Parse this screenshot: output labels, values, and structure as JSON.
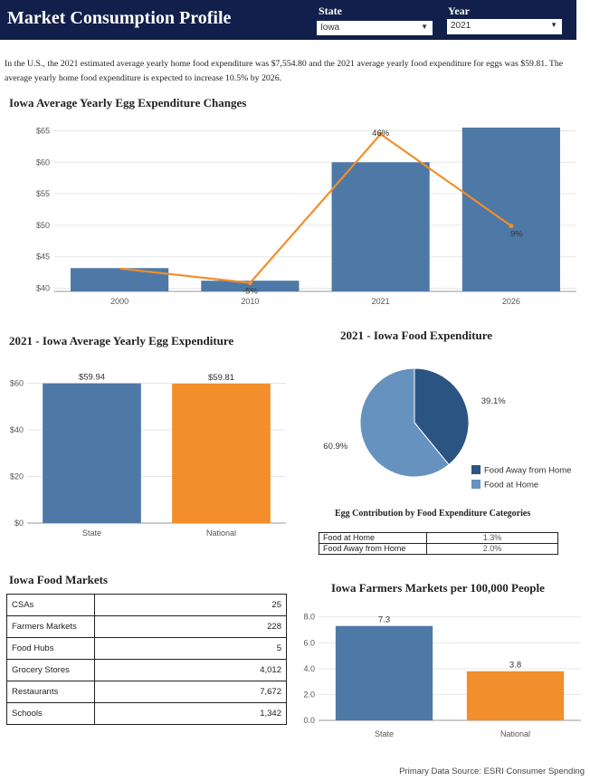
{
  "header": {
    "title": "Market Consumption Profile",
    "state_label": "State",
    "state_value": "Iowa",
    "year_label": "Year",
    "year_value": "2021"
  },
  "intro": "In the U.S., the 2021 estimated average yearly home food expenditure was $7,554.80 and the 2021 average yearly food expenditure for eggs was $59.81. The average yearly home food expenditure is expected to increase 10.5% by 2026.",
  "colors": {
    "blue": "#4e79a7",
    "orange": "#f28e2b",
    "dark_blue": "#2c5482",
    "light_blue": "#6592bf",
    "header": "#111f4a"
  },
  "chart_data": [
    {
      "id": "egg_changes",
      "type": "bar",
      "title": "Iowa Average Yearly Egg Expenditure Changes",
      "categories": [
        "2000",
        "2010",
        "2021",
        "2026"
      ],
      "values": [
        43.2,
        41.2,
        60.0,
        65.5
      ],
      "yticks": [
        "$40",
        "$45",
        "$50",
        "$55",
        "$60",
        "$65"
      ],
      "ylim": [
        39.5,
        65.5
      ],
      "line": {
        "name": "% change",
        "values": [
          3.5,
          1.3,
          24,
          10
        ],
        "labels": [
          "",
          "-5%",
          "46%",
          "9%"
        ],
        "ylim": [
          0,
          25
        ]
      }
    },
    {
      "id": "state_vs_national",
      "type": "bar",
      "title": "2021 - Iowa Average Yearly Egg Expenditure",
      "categories": [
        "State",
        "National"
      ],
      "values": [
        59.94,
        59.81
      ],
      "labels": [
        "$59.94",
        "$59.81"
      ],
      "yticks": [
        "$0",
        "$20",
        "$40",
        "$60"
      ],
      "ylim": [
        0,
        66
      ]
    },
    {
      "id": "food_pie",
      "type": "pie",
      "title": "2021 - Iowa Food Expenditure",
      "slices": [
        {
          "name": "Food Away from Home",
          "value": 39.1,
          "label": "39.1%"
        },
        {
          "name": "Food at Home",
          "value": 60.9,
          "label": "60.9%"
        }
      ]
    },
    {
      "id": "farmers_markets",
      "type": "bar",
      "title": "Iowa Farmers Markets per 100,000 People",
      "categories": [
        "State",
        "National"
      ],
      "values": [
        7.3,
        3.8
      ],
      "labels": [
        "7.3",
        "3.8"
      ],
      "yticks": [
        "0.0",
        "2.0",
        "4.0",
        "6.0",
        "8.0"
      ],
      "ylim": [
        0,
        8.4
      ]
    }
  ],
  "contribution": {
    "title": "Egg Contribution by Food Expenditure Categories",
    "rows": [
      {
        "label": "Food at Home",
        "value": "1.3%"
      },
      {
        "label": "Food Away from Home",
        "value": "2.0%"
      }
    ]
  },
  "markets": {
    "title": "Iowa Food Markets",
    "rows": [
      {
        "label": "CSAs",
        "value": "25"
      },
      {
        "label": "Farmers Markets",
        "value": "228"
      },
      {
        "label": "Food Hubs",
        "value": "5"
      },
      {
        "label": "Grocery Stores",
        "value": "4,012"
      },
      {
        "label": "Restaurants",
        "value": "7,672"
      },
      {
        "label": "Schools",
        "value": "1,342"
      }
    ]
  },
  "source": "Primary Data Source: ESRI Consumer Spending"
}
